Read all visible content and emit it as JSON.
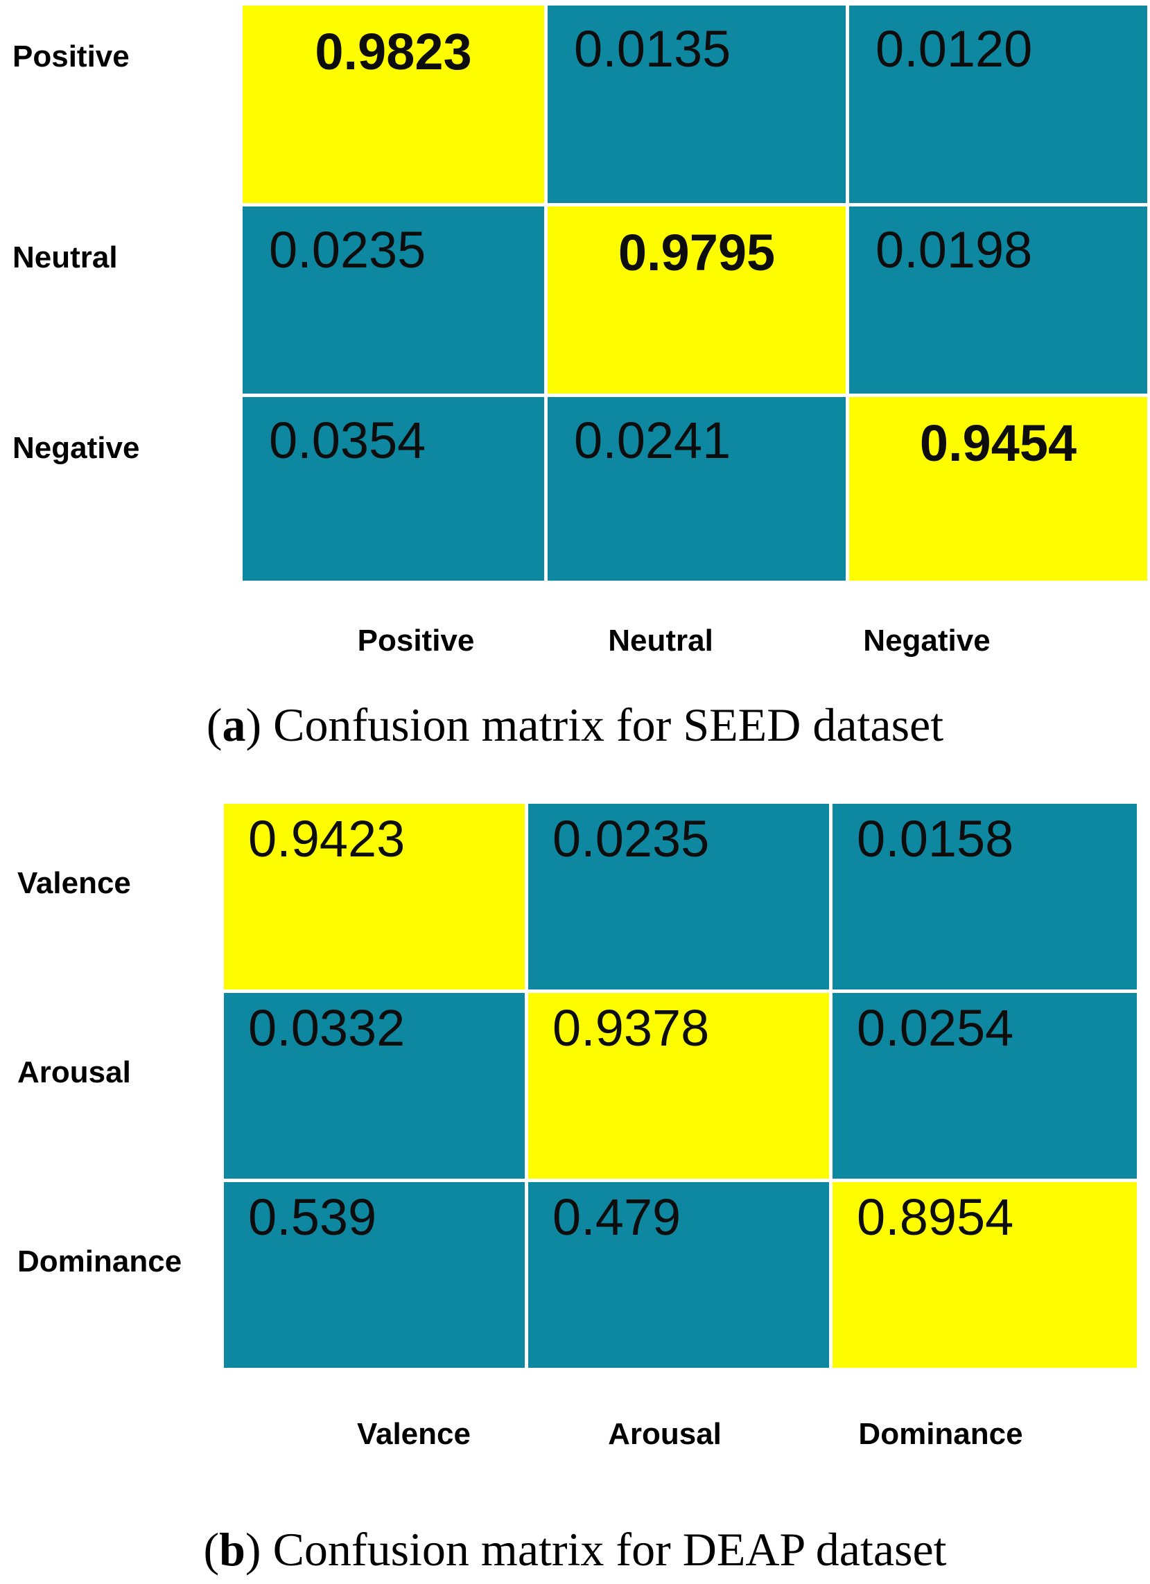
{
  "panels": [
    {
      "id": "a",
      "row_labels": [
        "Positive",
        "Neutral",
        "Negative"
      ],
      "col_labels": [
        "Positive",
        "Neutral",
        "Negative"
      ],
      "cells": [
        [
          "0.9823",
          "0.0135",
          "0.0120"
        ],
        [
          "0.0235",
          "0.9795",
          "0.0198"
        ],
        [
          "0.0354",
          "0.0241",
          "0.9454"
        ]
      ],
      "caption": {
        "open": "(",
        "letter": "a",
        "rest": ") Confusion matrix for SEED dataset"
      }
    },
    {
      "id": "b",
      "row_labels": [
        "Valence",
        "Arousal",
        "Dominance"
      ],
      "col_labels": [
        "Valence",
        "Arousal",
        "Dominance"
      ],
      "cells": [
        [
          "0.9423",
          "0.0235",
          "0.0158"
        ],
        [
          "0.0332",
          "0.9378",
          "0.0254"
        ],
        [
          "0.539",
          "0.479",
          "0.8954"
        ]
      ],
      "caption": {
        "open": "(",
        "letter": "b",
        "rest": ") Confusion matrix for DEAP dataset"
      }
    }
  ],
  "colors": {
    "diagonal_cell": "#fdfd00",
    "off_diagonal_cell": "#0e87a1",
    "cell_text": "#0d0d0d",
    "label_text": "#000000",
    "caption_text": "#000000",
    "background": "#ffffff"
  },
  "chart_data": [
    {
      "type": "heatmap",
      "title": "Confusion matrix for SEED dataset",
      "x_labels": [
        "Positive",
        "Neutral",
        "Negative"
      ],
      "y_labels": [
        "Positive",
        "Neutral",
        "Negative"
      ],
      "values": [
        [
          0.9823,
          0.0135,
          0.012
        ],
        [
          0.0235,
          0.9795,
          0.0198
        ],
        [
          0.0354,
          0.0241,
          0.9454
        ]
      ],
      "highlight": "diagonal",
      "legend": "none",
      "grid": "white-gaps",
      "color_high": "#fdfd00",
      "color_low": "#0e87a1"
    },
    {
      "type": "heatmap",
      "title": "Confusion matrix for DEAP dataset",
      "x_labels": [
        "Valence",
        "Arousal",
        "Dominance"
      ],
      "y_labels": [
        "Valence",
        "Arousal",
        "Dominance"
      ],
      "values": [
        [
          0.9423,
          0.0235,
          0.0158
        ],
        [
          0.0332,
          0.9378,
          0.0254
        ],
        [
          0.539,
          0.479,
          0.8954
        ]
      ],
      "highlight": "diagonal",
      "legend": "none",
      "grid": "white-gaps",
      "color_high": "#fdfd00",
      "color_low": "#0e87a1"
    }
  ]
}
